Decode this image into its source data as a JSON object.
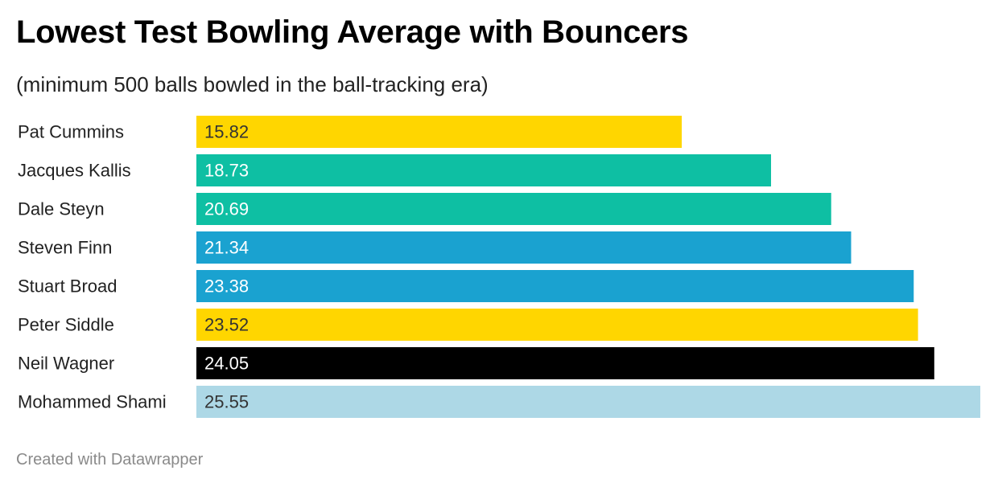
{
  "chart_data": {
    "type": "bar",
    "orientation": "horizontal",
    "title": "Lowest Test Bowling Average with Bouncers",
    "subtitle": "(minimum 500 balls bowled in the ball-tracking era)",
    "categories": [
      "Pat Cummins",
      "Jacques Kallis",
      "Dale Steyn",
      "Steven Finn",
      "Stuart Broad",
      "Peter Siddle",
      "Neil Wagner",
      "Mohammed Shami"
    ],
    "values": [
      15.82,
      18.73,
      20.69,
      21.34,
      23.38,
      23.52,
      24.05,
      25.55
    ],
    "value_labels": [
      "15.82",
      "18.73",
      "20.69",
      "21.34",
      "23.38",
      "23.52",
      "24.05",
      "25.55"
    ],
    "bar_colors": [
      "#ffd600",
      "#0ebfa3",
      "#0ebfa3",
      "#1aa2d0",
      "#1aa2d0",
      "#ffd600",
      "#000000",
      "#add8e6"
    ],
    "label_colors": [
      "#333333",
      "#ffffff",
      "#ffffff",
      "#ffffff",
      "#ffffff",
      "#333333",
      "#ffffff",
      "#333333"
    ],
    "xlim": [
      0,
      25.55
    ],
    "grid": false,
    "legend": "none"
  },
  "footer": {
    "credit": "Created with Datawrapper"
  }
}
